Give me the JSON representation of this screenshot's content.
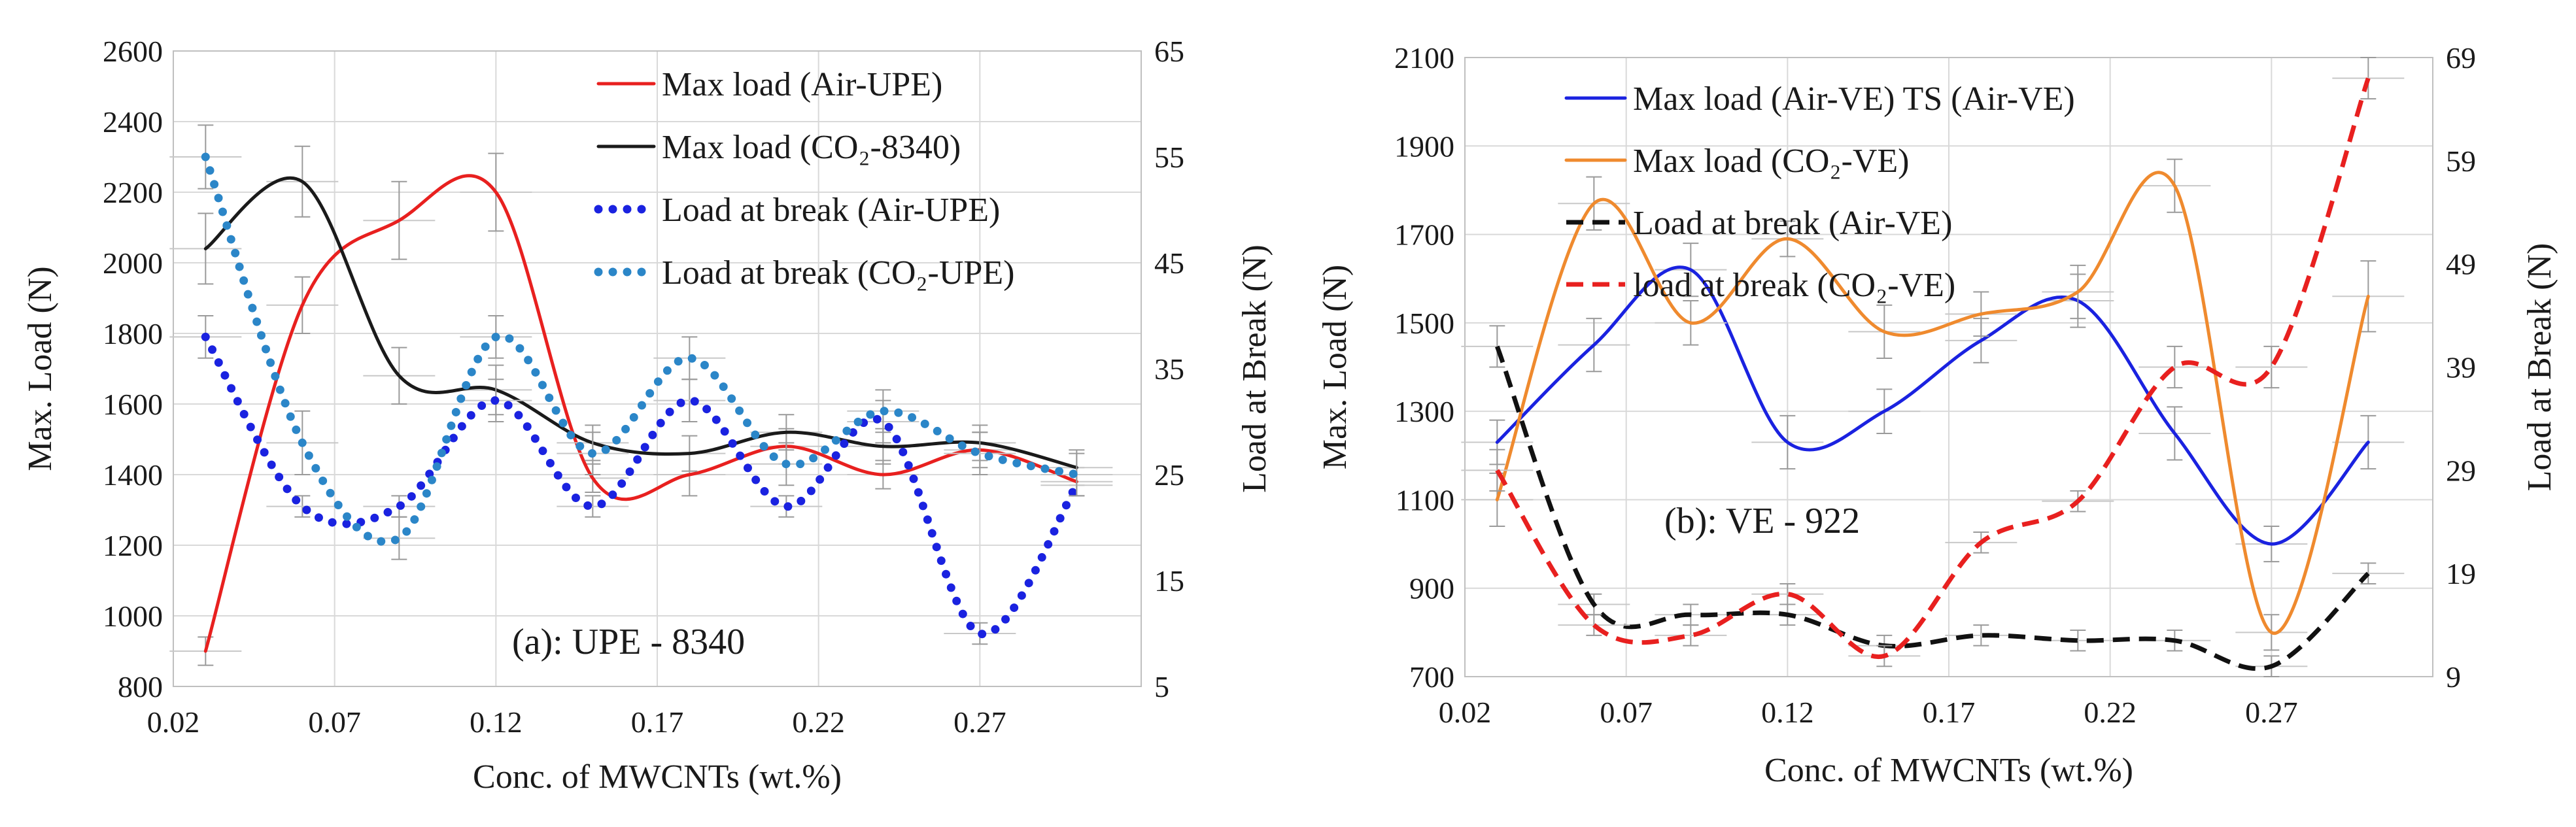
{
  "chart_data": [
    {
      "id": "a",
      "type": "line",
      "annotation": "(a): UPE - 8340",
      "xlabel": "Conc. of MWCNTs (wt.%)",
      "ylabel": "Max. Load (N)",
      "y2label": "Load at Break (N)",
      "xlim": [
        0.02,
        0.32
      ],
      "ylim": [
        800,
        2600
      ],
      "y2lim": [
        5,
        65
      ],
      "xticks": [
        0.02,
        0.07,
        0.12,
        0.17,
        0.22,
        0.27
      ],
      "xtick_labels": [
        "0.02",
        "0.07",
        "0.12",
        "0.17",
        "0.22",
        "0.27"
      ],
      "yticks": [
        800,
        1000,
        1200,
        1400,
        1600,
        1800,
        2000,
        2200,
        2400,
        2600
      ],
      "ytick_labels": [
        "800",
        "1000",
        "1200",
        "1400",
        "1600",
        "1800",
        "2000",
        "2200",
        "2400",
        "2600"
      ],
      "y2ticks": [
        5,
        15,
        25,
        35,
        45,
        55,
        65
      ],
      "y2tick_labels": [
        "5",
        "15",
        "25",
        "35",
        "45",
        "55",
        "65"
      ],
      "grid": true,
      "legend_position": "top-right",
      "series": [
        {
          "name": "Max load (Air-UPE)",
          "color": "#e8201f",
          "dash": "solid",
          "axis": "left",
          "x": [
            0.03,
            0.06,
            0.09,
            0.12,
            0.15,
            0.18,
            0.21,
            0.24,
            0.27,
            0.3
          ],
          "values": [
            900,
            1880,
            2120,
            2200,
            1390,
            1400,
            1480,
            1400,
            1470,
            1380
          ],
          "errors": [
            40,
            80,
            110,
            110,
            40,
            60,
            50,
            40,
            50,
            40
          ]
        },
        {
          "name": "Max load (CO₂-8340)",
          "color": "#1a1a1a",
          "dash": "solid",
          "axis": "left",
          "x": [
            0.03,
            0.06,
            0.09,
            0.12,
            0.15,
            0.18,
            0.21,
            0.24,
            0.27,
            0.3
          ],
          "values": [
            2040,
            2230,
            1680,
            1640,
            1490,
            1460,
            1520,
            1480,
            1490,
            1420
          ],
          "errors": [
            100,
            100,
            80,
            70,
            50,
            50,
            50,
            50,
            50,
            50
          ]
        },
        {
          "name": "Load at break (Air-UPE)",
          "color": "#1a22e0",
          "dash": "dotted",
          "axis": "right",
          "x": [
            0.03,
            0.06,
            0.09,
            0.12,
            0.15,
            0.18,
            0.21,
            0.24,
            0.27,
            0.3
          ],
          "values": [
            38,
            22,
            22,
            32,
            22,
            32,
            22,
            30,
            10,
            24
          ],
          "errors": [
            2,
            1,
            1,
            2,
            1,
            2,
            1,
            2,
            1,
            1
          ]
        },
        {
          "name": "Load at break (CO₂-UPE)",
          "color": "#2b86c8",
          "dash": "dotted",
          "axis": "right",
          "x": [
            0.03,
            0.06,
            0.09,
            0.12,
            0.15,
            0.18,
            0.21,
            0.24,
            0.27,
            0.3
          ],
          "values": [
            55,
            28,
            19,
            38,
            27,
            36,
            26,
            31,
            27,
            25
          ],
          "errors": [
            3,
            3,
            2,
            2,
            2,
            2,
            2,
            2,
            2,
            2
          ]
        }
      ]
    },
    {
      "id": "b",
      "type": "line",
      "annotation": "(b): VE - 922",
      "xlabel": "Conc. of MWCNTs (wt.%)",
      "ylabel": "Max. Load (N)",
      "y2label": "Load at Break (N)",
      "xlim": [
        0.02,
        0.32
      ],
      "ylim": [
        700,
        2100
      ],
      "y2lim": [
        9,
        69
      ],
      "xticks": [
        0.02,
        0.07,
        0.12,
        0.17,
        0.22,
        0.27
      ],
      "xtick_labels": [
        "0.02",
        "0.07",
        "0.12",
        "0.17",
        "0.22",
        "0.27"
      ],
      "yticks": [
        700,
        900,
        1100,
        1300,
        1500,
        1700,
        1900,
        2100
      ],
      "ytick_labels": [
        "700",
        "900",
        "1100",
        "1300",
        "1500",
        "1700",
        "1900",
        "2100"
      ],
      "y2ticks": [
        9,
        19,
        29,
        39,
        49,
        59,
        69
      ],
      "y2tick_labels": [
        "9",
        "19",
        "29",
        "39",
        "49",
        "59",
        "69"
      ],
      "grid": true,
      "legend_position": "top-left",
      "series": [
        {
          "name": "Max load (Air-VE) TS (Air-VE)",
          "color": "#1a22e0",
          "dash": "solid",
          "axis": "left",
          "x": [
            0.03,
            0.06,
            0.09,
            0.12,
            0.15,
            0.18,
            0.21,
            0.24,
            0.27,
            0.3
          ],
          "values": [
            1230,
            1450,
            1620,
            1230,
            1300,
            1460,
            1550,
            1250,
            1000,
            1230
          ],
          "errors": [
            50,
            60,
            60,
            60,
            50,
            50,
            60,
            60,
            40,
            60
          ]
        },
        {
          "name": "Max load (CO₂-VE)",
          "color": "#ef8a2e",
          "dash": "solid",
          "axis": "left",
          "x": [
            0.03,
            0.06,
            0.09,
            0.12,
            0.15,
            0.18,
            0.21,
            0.24,
            0.27,
            0.3
          ],
          "values": [
            1100,
            1770,
            1500,
            1690,
            1480,
            1520,
            1570,
            1810,
            800,
            1560
          ],
          "errors": [
            60,
            60,
            50,
            40,
            60,
            50,
            60,
            60,
            40,
            80
          ]
        },
        {
          "name": "Load at break (Air-VE)",
          "color": "#111111",
          "dash": "dashed",
          "axis": "right",
          "x": [
            0.03,
            0.06,
            0.09,
            0.12,
            0.15,
            0.18,
            0.21,
            0.24,
            0.27,
            0.3
          ],
          "values": [
            41,
            16,
            15,
            15,
            12,
            13,
            12.5,
            12.5,
            10,
            19
          ],
          "errors": [
            2,
            1,
            1,
            1,
            1,
            1,
            1,
            1,
            1,
            1
          ]
        },
        {
          "name": "load at break (CO₂-VE)",
          "color": "#e8201f",
          "dash": "dashed",
          "axis": "right",
          "x": [
            0.03,
            0.06,
            0.09,
            0.12,
            0.15,
            0.18,
            0.21,
            0.24,
            0.27,
            0.3
          ],
          "values": [
            29,
            14,
            13,
            17,
            11,
            22,
            26,
            39,
            39,
            67
          ],
          "errors": [
            2,
            1,
            1,
            1,
            1,
            1,
            1,
            2,
            2,
            2
          ]
        }
      ]
    }
  ]
}
